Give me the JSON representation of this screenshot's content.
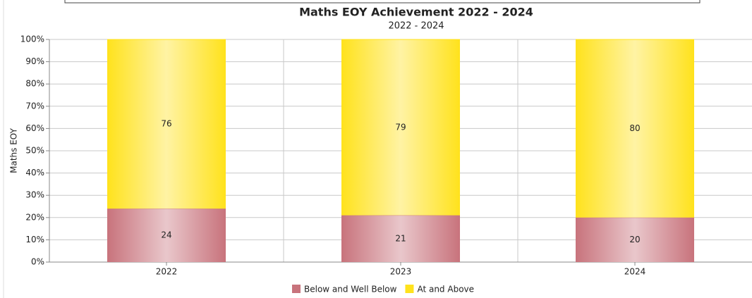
{
  "chart_data": {
    "type": "stacked_bar",
    "title": "Maths EOY Achievement 2022 - 2024",
    "subtitle": "2022 - 2024",
    "y_label": "Maths EOY",
    "categories": [
      "2022",
      "2023",
      "2024"
    ],
    "series": [
      {
        "name": "Below and Well Below",
        "color": "#c8737c",
        "values": [
          24,
          21,
          20
        ]
      },
      {
        "name": "At and Above",
        "color": "#ffe21c",
        "values": [
          76,
          79,
          80
        ]
      }
    ],
    "ylim": [
      0,
      100
    ],
    "yticks": [
      {
        "value": 0,
        "label": "0%"
      },
      {
        "value": 10,
        "label": "10%"
      },
      {
        "value": 20,
        "label": "20%"
      },
      {
        "value": 30,
        "label": "30%"
      },
      {
        "value": 40,
        "label": "40%"
      },
      {
        "value": 50,
        "label": "50%"
      },
      {
        "value": 60,
        "label": "60%"
      },
      {
        "value": 70,
        "label": "70%"
      },
      {
        "value": 80,
        "label": "80%"
      },
      {
        "value": 90,
        "label": "90%"
      },
      {
        "value": 100,
        "label": "100%"
      }
    ],
    "grid": true,
    "legend": "bottom"
  }
}
